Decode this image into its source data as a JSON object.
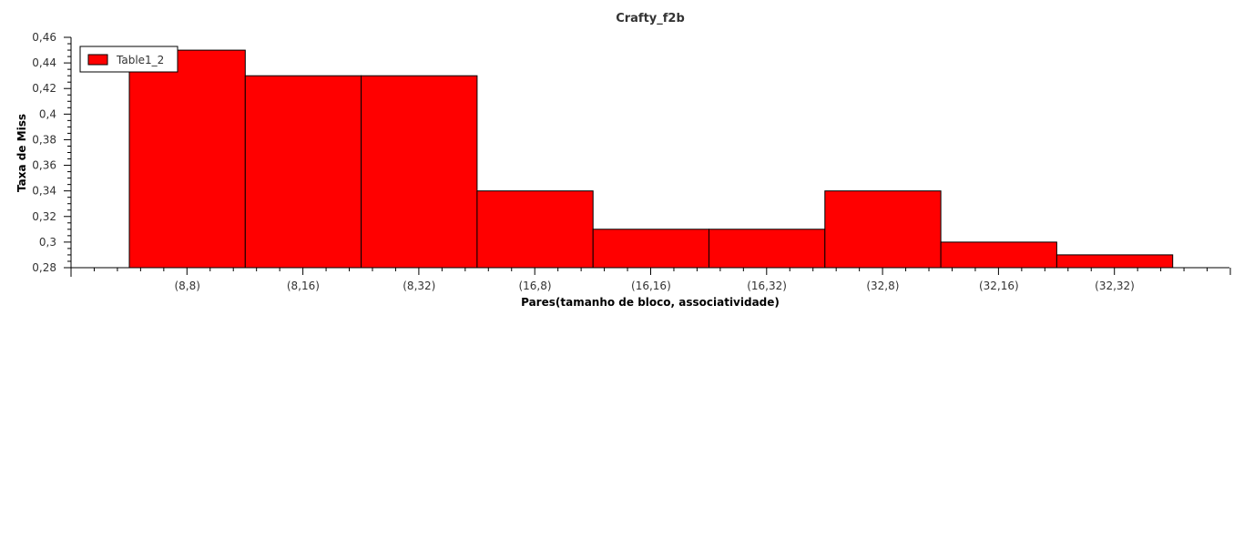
{
  "chart_data": {
    "type": "bar",
    "title": "Crafty_f2b",
    "xlabel": "Pares(tamanho de bloco, associatividade)",
    "ylabel": "Taxa de Miss",
    "categories": [
      "(8,8)",
      "(8,16)",
      "(8,32)",
      "(16,8)",
      "(16,16)",
      "(16,32)",
      "(32,8)",
      "(32,16)",
      "(32,32)"
    ],
    "series": [
      {
        "name": "Table1_2",
        "values": [
          0.45,
          0.43,
          0.43,
          0.34,
          0.31,
          0.31,
          0.34,
          0.3,
          0.29
        ]
      }
    ],
    "ylim": [
      0.28,
      0.46
    ],
    "yticks": [
      "0,28",
      "0,3",
      "0,32",
      "0,34",
      "0,36",
      "0,38",
      "0,4",
      "0,42",
      "0,44",
      "0,46"
    ],
    "grid": false,
    "legend_position": "top-left",
    "bar_color": "#ff0000",
    "bar_edge_color": "#000000"
  }
}
